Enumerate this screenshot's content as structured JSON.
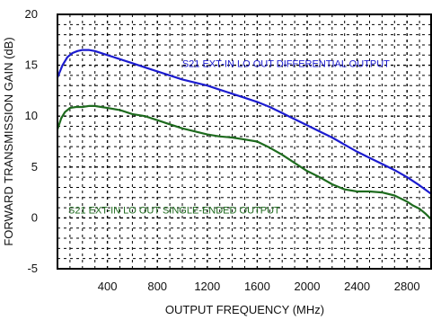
{
  "chart_data": {
    "type": "line",
    "title": "",
    "xlabel": "OUTPUT FREQUENCY (MHz)",
    "ylabel": "FORWARD TRANSMISSION GAIN (dB)",
    "xlim": [
      0,
      3000
    ],
    "ylim": [
      -5,
      20
    ],
    "x_ticks": [
      400,
      800,
      1200,
      1600,
      2000,
      2400,
      2800
    ],
    "y_ticks": [
      -5,
      0,
      5,
      10,
      15,
      20
    ],
    "grid": true,
    "series": [
      {
        "name": "S21 EXT-IN LO OUT DIFFERENTIAL OUTPUT",
        "color": "#1c1ccf",
        "points": [
          [
            0,
            13.8
          ],
          [
            40,
            15.0
          ],
          [
            80,
            15.8
          ],
          [
            120,
            16.2
          ],
          [
            160,
            16.4
          ],
          [
            200,
            16.5
          ],
          [
            250,
            16.5
          ],
          [
            300,
            16.4
          ],
          [
            400,
            16.0
          ],
          [
            500,
            15.6
          ],
          [
            600,
            15.2
          ],
          [
            700,
            14.8
          ],
          [
            800,
            14.4
          ],
          [
            900,
            14.0
          ],
          [
            1000,
            13.6
          ],
          [
            1100,
            13.3
          ],
          [
            1200,
            13.0
          ],
          [
            1300,
            12.6
          ],
          [
            1400,
            12.2
          ],
          [
            1500,
            11.8
          ],
          [
            1600,
            11.4
          ],
          [
            1700,
            10.9
          ],
          [
            1800,
            10.3
          ],
          [
            1900,
            9.7
          ],
          [
            2000,
            9.1
          ],
          [
            2100,
            8.5
          ],
          [
            2200,
            7.9
          ],
          [
            2300,
            7.2
          ],
          [
            2400,
            6.5
          ],
          [
            2500,
            5.9
          ],
          [
            2600,
            5.3
          ],
          [
            2700,
            4.7
          ],
          [
            2800,
            4.0
          ],
          [
            2900,
            3.2
          ],
          [
            3000,
            2.3
          ]
        ]
      },
      {
        "name": "S21 EXT-IN LO OUT SINGLE-ENDED OUTPUT",
        "color": "#1e6b1e",
        "points": [
          [
            0,
            8.7
          ],
          [
            30,
            9.8
          ],
          [
            60,
            10.4
          ],
          [
            100,
            10.8
          ],
          [
            150,
            10.9
          ],
          [
            200,
            10.9
          ],
          [
            250,
            11.0
          ],
          [
            300,
            11.0
          ],
          [
            350,
            10.9
          ],
          [
            400,
            10.8
          ],
          [
            500,
            10.6
          ],
          [
            600,
            10.2
          ],
          [
            700,
            10.0
          ],
          [
            800,
            9.6
          ],
          [
            900,
            9.2
          ],
          [
            1000,
            8.8
          ],
          [
            1100,
            8.5
          ],
          [
            1200,
            8.2
          ],
          [
            1300,
            8.0
          ],
          [
            1400,
            7.9
          ],
          [
            1500,
            7.7
          ],
          [
            1600,
            7.5
          ],
          [
            1700,
            6.9
          ],
          [
            1800,
            6.2
          ],
          [
            1900,
            5.4
          ],
          [
            2000,
            4.6
          ],
          [
            2100,
            4.0
          ],
          [
            2200,
            3.3
          ],
          [
            2300,
            2.8
          ],
          [
            2400,
            2.6
          ],
          [
            2500,
            2.6
          ],
          [
            2600,
            2.5
          ],
          [
            2700,
            2.2
          ],
          [
            2800,
            1.6
          ],
          [
            2850,
            1.2
          ],
          [
            2900,
            0.9
          ],
          [
            2950,
            0.4
          ],
          [
            3000,
            -0.2
          ]
        ]
      }
    ]
  }
}
